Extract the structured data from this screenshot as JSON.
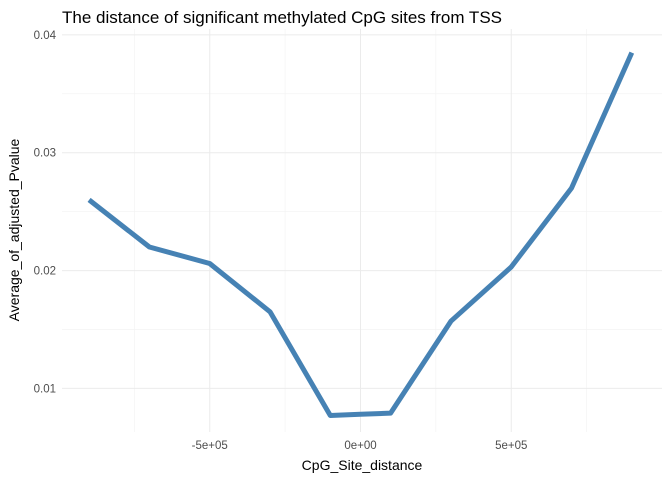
{
  "chart_data": {
    "type": "line",
    "title": "The distance of significant methylated CpG sites from TSS",
    "xlabel": "CpG_Site_distance",
    "ylabel": "Average_of_adjusted_Pvalue",
    "xlim": [
      -990000,
      1000000
    ],
    "ylim": [
      0.0063,
      0.0405
    ],
    "x_ticks": [
      {
        "value": -500000,
        "label": "-5e+05"
      },
      {
        "value": 0,
        "label": "0e+00"
      },
      {
        "value": 500000,
        "label": "5e+05"
      }
    ],
    "y_ticks": [
      {
        "value": 0.01,
        "label": "0.01"
      },
      {
        "value": 0.02,
        "label": "0.02"
      },
      {
        "value": 0.03,
        "label": "0.03"
      },
      {
        "value": 0.04,
        "label": "0.04"
      }
    ],
    "grid": true,
    "legend": "none",
    "series": [
      {
        "color": "#4682b4",
        "x": [
          -900000,
          -700000,
          -500000,
          -300000,
          -100000,
          0,
          100000,
          300000,
          500000,
          700000,
          900000
        ],
        "y": [
          0.026,
          0.022,
          0.0206,
          0.0165,
          0.0077,
          0.0078,
          0.0079,
          0.0157,
          0.0203,
          0.027,
          0.0385
        ]
      }
    ]
  }
}
